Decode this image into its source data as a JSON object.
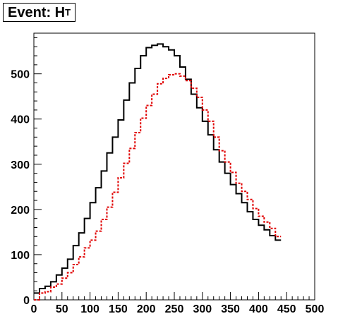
{
  "title": {
    "main": "Event: H",
    "sub": "T"
  },
  "chart_data": {
    "type": "histogram",
    "title": "Event: H_T",
    "xlabel": "",
    "ylabel": "",
    "xlim": [
      0,
      500
    ],
    "ylim": [
      0,
      590
    ],
    "bin_width": 10,
    "grid": false,
    "legend": "none",
    "x_ticks": [
      "0",
      "50",
      "100",
      "150",
      "200",
      "250",
      "300",
      "350",
      "400",
      "450",
      "500"
    ],
    "y_ticks": [
      "0",
      "100",
      "200",
      "300",
      "400",
      "500"
    ],
    "x_tick_values": [
      0,
      50,
      100,
      150,
      200,
      250,
      300,
      350,
      400,
      450,
      500
    ],
    "y_tick_values": [
      0,
      100,
      200,
      300,
      400,
      500
    ],
    "series": [
      {
        "color": "#000000",
        "style": "solid",
        "values": [
          15,
          25,
          30,
          40,
          55,
          70,
          90,
          120,
          148,
          180,
          215,
          248,
          285,
          325,
          360,
          398,
          442,
          480,
          512,
          540,
          558,
          563,
          566,
          560,
          553,
          540,
          515,
          488,
          455,
          425,
          395,
          365,
          332,
          305,
          280,
          255,
          235,
          215,
          195,
          178,
          165,
          155,
          142,
          132
        ]
      },
      {
        "color": "#e00000",
        "style": "dashed",
        "values": [
          0,
          15,
          18,
          28,
          35,
          48,
          60,
          78,
          95,
          115,
          132,
          152,
          178,
          205,
          238,
          270,
          302,
          335,
          370,
          402,
          430,
          455,
          478,
          490,
          498,
          500,
          495,
          485,
          468,
          448,
          420,
          395,
          360,
          330,
          305,
          282,
          258,
          240,
          222,
          202,
          185,
          172,
          158,
          140
        ]
      }
    ]
  }
}
